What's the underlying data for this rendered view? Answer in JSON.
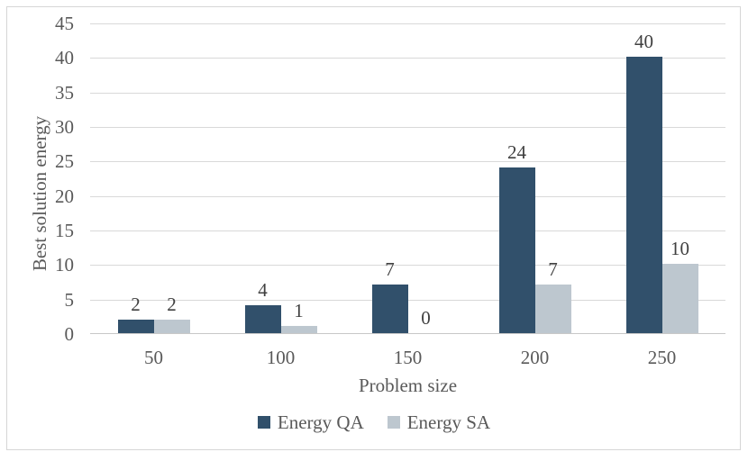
{
  "chart_data": {
    "type": "bar",
    "title": "",
    "xlabel": "Problem size",
    "ylabel": "Best solution energy",
    "categories": [
      "50",
      "100",
      "150",
      "200",
      "250"
    ],
    "series": [
      {
        "name": "Energy QA",
        "color": "#31506B",
        "values": [
          2,
          4,
          7,
          24,
          40
        ]
      },
      {
        "name": "Energy SA",
        "color": "#BDC7CF",
        "values": [
          2,
          1,
          0,
          7,
          10
        ]
      }
    ],
    "ylim": [
      0,
      45
    ],
    "ytick_step": 5,
    "yticks": [
      0,
      5,
      10,
      15,
      20,
      25,
      30,
      35,
      40,
      45
    ],
    "grid": true,
    "legend_position": "bottom",
    "data_labels": true
  },
  "colors": {
    "axis_text": "#595959",
    "data_label_text": "#404040",
    "gridline": "#D9D9D9",
    "axis_line": "#C8C8C8",
    "frame_border": "#D6D6D6",
    "background": "#FFFFFF"
  }
}
